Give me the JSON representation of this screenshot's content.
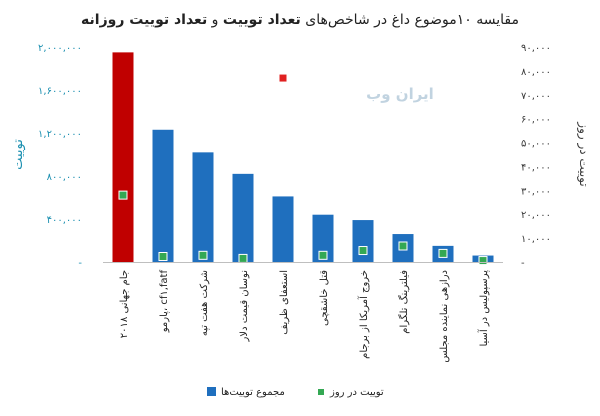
{
  "chart_data": {
    "type": "bar",
    "title_parts": [
      {
        "text": "مقایسه ۱۰موضوع داغ در شاخص‌های ",
        "bold": false
      },
      {
        "text": "تعداد توییت",
        "bold": true
      },
      {
        "text": " و ",
        "bold": false
      },
      {
        "text": "تعداد توییت روزانه",
        "bold": true
      }
    ],
    "categories": [
      "جام جهانی ۲۰۱۸",
      "پارمو، cf۱,fatf",
      "شرکت هفت تپه",
      "نوسان قیمت دلار",
      "استعفای ظریف",
      "قتل خاشقچی",
      "خروج آمریکا از برجام",
      "فیلترینگ تلگرام",
      "درازهی نماینده مجلس",
      "پرسپولیس در آسیا"
    ],
    "series": [
      {
        "name": "مجموع توییت‌ها",
        "axis": "left",
        "values": [
          1950000,
          1230000,
          1020000,
          820000,
          610000,
          440000,
          390000,
          260000,
          150000,
          60000
        ],
        "colors": [
          "#c00000",
          "#1f6fbe",
          "#1f6fbe",
          "#1f6fbe",
          "#1f6fbe",
          "#1f6fbe",
          "#1f6fbe",
          "#1f6fbe",
          "#1f6fbe",
          "#1f6fbe"
        ]
      },
      {
        "name": "توییت در روز",
        "axis": "right",
        "values": [
          28000,
          2300,
          2800,
          1500,
          77000,
          2800,
          4800,
          6700,
          3600,
          600
        ],
        "colors": [
          "#34a853",
          "#34a853",
          "#34a853",
          "#34a853",
          "#e02020",
          "#34a853",
          "#34a853",
          "#34a853",
          "#34a853",
          "#34a853"
        ]
      }
    ],
    "y_left": {
      "label": "توییت",
      "range": [
        0,
        2000000
      ],
      "ticks": [
        0,
        400000,
        800000,
        1200000,
        1600000,
        2000000
      ],
      "tick_labels": [
        "-",
        "۴۰۰,۰۰۰",
        "۸۰۰,۰۰۰",
        "۱,۲۰۰,۰۰۰",
        "۱,۶۰۰,۰۰۰",
        "۲,۰۰۰,۰۰۰"
      ],
      "color": "#1a8fb0"
    },
    "y_right": {
      "label": "توییت در روز",
      "range": [
        0,
        90000
      ],
      "ticks": [
        0,
        10000,
        20000,
        30000,
        40000,
        50000,
        60000,
        70000,
        80000,
        90000
      ],
      "tick_labels": [
        "-",
        "۱۰,۰۰۰",
        "۲۰,۰۰۰",
        "۳۰,۰۰۰",
        "۴۰,۰۰۰",
        "۵۰,۰۰۰",
        "۶۰,۰۰۰",
        "۷۰,۰۰۰",
        "۸۰,۰۰۰",
        "۹۰,۰۰۰"
      ],
      "color": "#3a3a3a"
    },
    "grid": false,
    "legend_placement": "bottom",
    "watermark": "ایران وب"
  }
}
